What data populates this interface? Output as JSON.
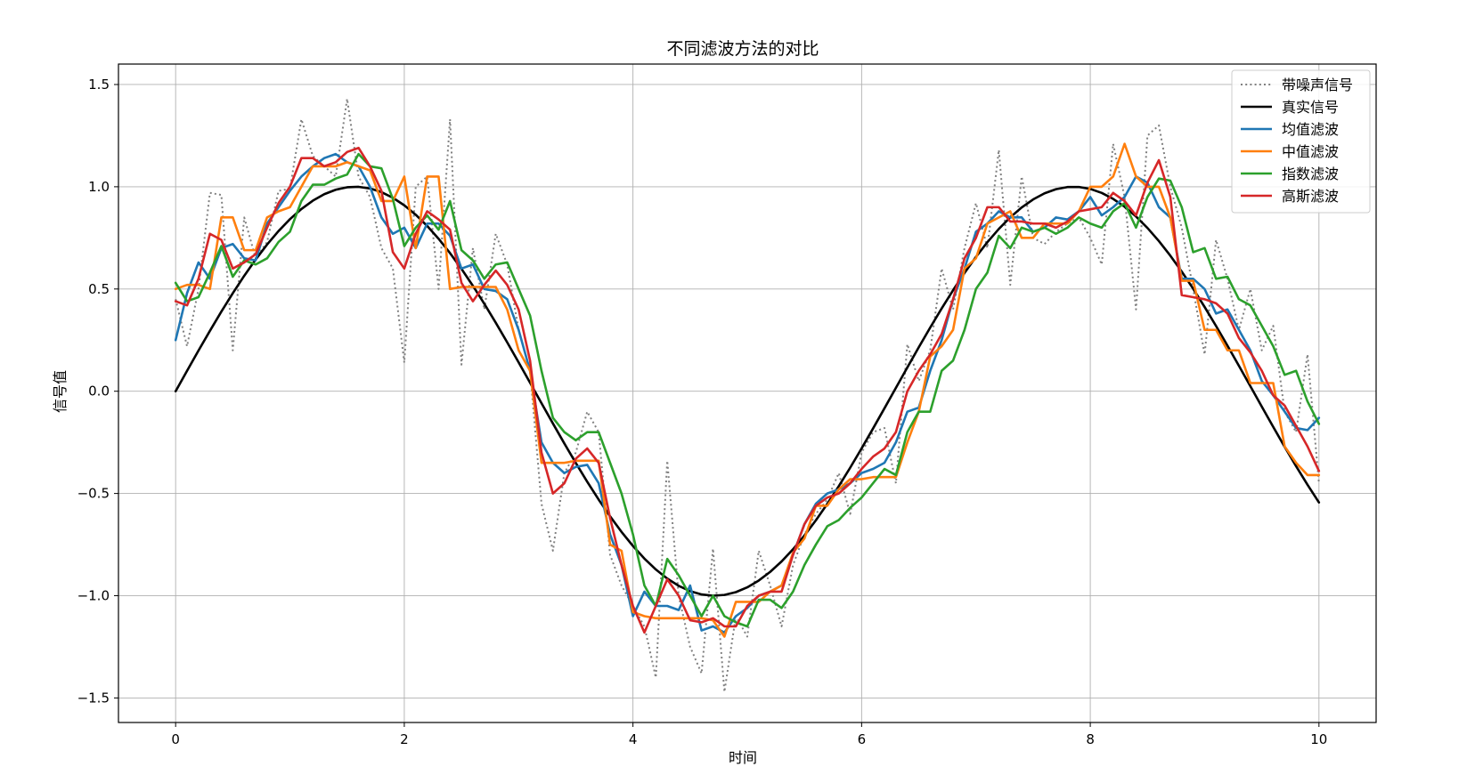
{
  "chart_data": {
    "type": "line",
    "title": "不同滤波方法的对比",
    "xlabel": "时间",
    "ylabel": "信号值",
    "xlim": [
      -0.5,
      10.5
    ],
    "ylim": [
      -1.62,
      1.6
    ],
    "xticks": [
      0,
      2,
      4,
      6,
      8,
      10
    ],
    "xtick_labels": [
      "0",
      "2",
      "4",
      "6",
      "8",
      "10"
    ],
    "yticks": [
      -1.5,
      -1.0,
      -0.5,
      0.0,
      0.5,
      1.0,
      1.5
    ],
    "ytick_labels": [
      "−1.5",
      "−1.0",
      "−0.5",
      "0.0",
      "0.5",
      "1.0",
      "1.5"
    ],
    "grid": true,
    "legend_position": "top-right",
    "x": [
      0.0,
      0.1,
      0.2,
      0.3,
      0.4,
      0.5,
      0.6,
      0.7,
      0.8,
      0.9,
      1.0,
      1.1,
      1.2,
      1.3,
      1.4,
      1.5,
      1.6,
      1.7,
      1.8,
      1.9,
      2.0,
      2.1,
      2.2,
      2.3,
      2.4,
      2.5,
      2.6,
      2.7,
      2.8,
      2.9,
      3.0,
      3.1,
      3.2,
      3.3,
      3.4,
      3.5,
      3.6,
      3.7,
      3.8,
      3.9,
      4.0,
      4.1,
      4.2,
      4.3,
      4.4,
      4.5,
      4.6,
      4.7,
      4.8,
      4.9,
      5.0,
      5.1,
      5.2,
      5.3,
      5.4,
      5.5,
      5.6,
      5.7,
      5.8,
      5.9,
      6.0,
      6.1,
      6.2,
      6.3,
      6.4,
      6.5,
      6.6,
      6.7,
      6.8,
      6.9,
      7.0,
      7.1,
      7.2,
      7.3,
      7.4,
      7.5,
      7.6,
      7.7,
      7.8,
      7.9,
      8.0,
      8.1,
      8.2,
      8.3,
      8.4,
      8.5,
      8.6,
      8.7,
      8.8,
      8.9,
      9.0,
      9.1,
      9.2,
      9.3,
      9.4,
      9.5,
      9.6,
      9.7,
      9.8,
      9.9,
      10.0
    ],
    "series": [
      {
        "name": "带噪声信号",
        "color": "#808080",
        "style": "dotted",
        "values": [
          0.45,
          0.22,
          0.5,
          0.97,
          0.96,
          0.2,
          0.85,
          0.65,
          0.73,
          0.98,
          0.99,
          1.33,
          1.15,
          1.1,
          1.05,
          1.43,
          1.05,
          0.95,
          0.7,
          0.6,
          0.14,
          1.0,
          1.05,
          0.5,
          1.33,
          0.13,
          0.7,
          0.4,
          0.77,
          0.62,
          0.3,
          0.1,
          -0.55,
          -0.78,
          -0.4,
          -0.3,
          -0.1,
          -0.2,
          -0.8,
          -0.95,
          -1.05,
          -1.15,
          -1.4,
          -0.34,
          -1.0,
          -1.25,
          -1.38,
          -0.77,
          -1.47,
          -1.1,
          -1.2,
          -0.78,
          -0.95,
          -1.15,
          -0.85,
          -0.7,
          -0.6,
          -0.53,
          -0.4,
          -0.6,
          -0.3,
          -0.2,
          -0.18,
          -0.45,
          0.23,
          0.05,
          0.2,
          0.6,
          0.4,
          0.7,
          0.92,
          0.7,
          1.18,
          0.52,
          1.05,
          0.75,
          0.72,
          0.78,
          0.82,
          0.85,
          0.75,
          0.62,
          1.21,
          0.95,
          0.4,
          1.25,
          1.3,
          1.0,
          0.8,
          0.5,
          0.18,
          0.74,
          0.55,
          0.3,
          0.5,
          0.2,
          0.32,
          -0.1,
          -0.2,
          0.18,
          -0.45
        ]
      },
      {
        "name": "真实信号",
        "color": "#000000",
        "style": "solid",
        "values": [
          0.0,
          0.0998,
          0.1987,
          0.2955,
          0.3894,
          0.4794,
          0.5646,
          0.6442,
          0.7174,
          0.7833,
          0.8415,
          0.8912,
          0.932,
          0.9636,
          0.9854,
          0.9975,
          0.9996,
          0.9917,
          0.9738,
          0.9463,
          0.9093,
          0.8632,
          0.8085,
          0.7457,
          0.6755,
          0.5985,
          0.5155,
          0.4274,
          0.335,
          0.2392,
          0.1411,
          0.0416,
          -0.0584,
          -0.1577,
          -0.2555,
          -0.3508,
          -0.4425,
          -0.5298,
          -0.6119,
          -0.6878,
          -0.7568,
          -0.8183,
          -0.8716,
          -0.9162,
          -0.9516,
          -0.9775,
          -0.9937,
          -0.9999,
          -0.9962,
          -0.9825,
          -0.9589,
          -0.9258,
          -0.8835,
          -0.8323,
          -0.7728,
          -0.7055,
          -0.6313,
          -0.5507,
          -0.4646,
          -0.3739,
          -0.2794,
          -0.1822,
          -0.0831,
          0.0168,
          0.1165,
          0.2151,
          0.3115,
          0.4048,
          0.4941,
          0.5784,
          0.657,
          0.729,
          0.7937,
          0.8504,
          0.8987,
          0.938,
          0.9679,
          0.9882,
          0.9985,
          0.9989,
          0.9894,
          0.9699,
          0.9407,
          0.9022,
          0.8546,
          0.7985,
          0.7344,
          0.663,
          0.5849,
          0.501,
          0.4121,
          0.319,
          0.2229,
          0.1245,
          0.0248,
          -0.0752,
          -0.1743,
          -0.2718,
          -0.3665,
          -0.4575,
          -0.544
        ]
      },
      {
        "name": "均值滤波",
        "color": "#1f77b4",
        "style": "solid",
        "values": [
          0.25,
          0.48,
          0.63,
          0.55,
          0.7,
          0.72,
          0.65,
          0.64,
          0.82,
          0.9,
          0.98,
          1.05,
          1.1,
          1.14,
          1.16,
          1.12,
          1.1,
          1.0,
          0.85,
          0.77,
          0.8,
          0.7,
          0.82,
          0.82,
          0.76,
          0.6,
          0.62,
          0.5,
          0.49,
          0.45,
          0.3,
          0.1,
          -0.25,
          -0.35,
          -0.4,
          -0.37,
          -0.36,
          -0.45,
          -0.7,
          -0.85,
          -1.1,
          -0.98,
          -1.05,
          -1.05,
          -1.07,
          -0.95,
          -1.17,
          -1.15,
          -1.18,
          -1.1,
          -1.06,
          -1.0,
          -0.98,
          -0.95,
          -0.8,
          -0.65,
          -0.55,
          -0.5,
          -0.48,
          -0.45,
          -0.4,
          -0.38,
          -0.35,
          -0.25,
          -0.1,
          -0.08,
          0.1,
          0.25,
          0.45,
          0.6,
          0.78,
          0.82,
          0.88,
          0.85,
          0.85,
          0.78,
          0.8,
          0.85,
          0.84,
          0.88,
          0.95,
          0.86,
          0.9,
          0.95,
          1.05,
          1.02,
          0.9,
          0.85,
          0.55,
          0.55,
          0.5,
          0.38,
          0.4,
          0.3,
          0.2,
          0.05,
          -0.02,
          -0.1,
          -0.18,
          -0.19,
          -0.13
        ]
      },
      {
        "name": "中值滤波",
        "color": "#ff7f0e",
        "style": "solid",
        "values": [
          0.5,
          0.52,
          0.52,
          0.5,
          0.85,
          0.85,
          0.69,
          0.69,
          0.85,
          0.88,
          0.9,
          1.0,
          1.1,
          1.1,
          1.1,
          1.12,
          1.1,
          1.08,
          0.93,
          0.93,
          1.05,
          0.7,
          1.05,
          1.05,
          0.5,
          0.51,
          0.51,
          0.51,
          0.51,
          0.4,
          0.2,
          0.1,
          -0.35,
          -0.35,
          -0.35,
          -0.34,
          -0.34,
          -0.34,
          -0.75,
          -0.78,
          -1.08,
          -1.1,
          -1.11,
          -1.11,
          -1.11,
          -1.11,
          -1.11,
          -1.12,
          -1.2,
          -1.03,
          -1.03,
          -1.03,
          -0.98,
          -0.95,
          -0.79,
          -0.72,
          -0.56,
          -0.56,
          -0.48,
          -0.43,
          -0.43,
          -0.42,
          -0.42,
          -0.42,
          -0.25,
          -0.1,
          0.17,
          0.22,
          0.3,
          0.6,
          0.65,
          0.82,
          0.85,
          0.88,
          0.75,
          0.75,
          0.82,
          0.82,
          0.82,
          0.88,
          1.0,
          1.0,
          1.05,
          1.21,
          1.05,
          1.0,
          1.0,
          0.85,
          0.54,
          0.54,
          0.3,
          0.3,
          0.2,
          0.2,
          0.04,
          0.04,
          0.04,
          -0.27,
          -0.35,
          -0.41,
          -0.41
        ]
      },
      {
        "name": "指数滤波",
        "color": "#2ca02c",
        "style": "solid",
        "values": [
          0.53,
          0.44,
          0.46,
          0.58,
          0.71,
          0.56,
          0.64,
          0.62,
          0.65,
          0.73,
          0.78,
          0.93,
          1.01,
          1.01,
          1.04,
          1.06,
          1.16,
          1.1,
          1.09,
          0.94,
          0.71,
          0.8,
          0.86,
          0.79,
          0.93,
          0.69,
          0.64,
          0.55,
          0.62,
          0.63,
          0.5,
          0.37,
          0.1,
          -0.13,
          -0.2,
          -0.24,
          -0.2,
          -0.2,
          -0.35,
          -0.5,
          -0.7,
          -0.95,
          -1.05,
          -0.82,
          -0.9,
          -1.0,
          -1.1,
          -1.0,
          -1.1,
          -1.13,
          -1.15,
          -1.02,
          -1.02,
          -1.06,
          -0.98,
          -0.85,
          -0.75,
          -0.66,
          -0.63,
          -0.57,
          -0.52,
          -0.45,
          -0.38,
          -0.41,
          -0.2,
          -0.1,
          -0.1,
          0.1,
          0.15,
          0.3,
          0.5,
          0.58,
          0.76,
          0.7,
          0.8,
          0.78,
          0.8,
          0.77,
          0.8,
          0.85,
          0.82,
          0.8,
          0.88,
          0.92,
          0.8,
          0.95,
          1.04,
          1.03,
          0.9,
          0.68,
          0.7,
          0.55,
          0.56,
          0.45,
          0.42,
          0.32,
          0.22,
          0.08,
          0.1,
          -0.05,
          -0.16
        ]
      },
      {
        "name": "高斯滤波",
        "color": "#d62728",
        "style": "solid",
        "values": [
          0.44,
          0.42,
          0.55,
          0.77,
          0.74,
          0.6,
          0.63,
          0.67,
          0.8,
          0.92,
          1.0,
          1.14,
          1.14,
          1.1,
          1.12,
          1.17,
          1.19,
          1.1,
          0.98,
          0.68,
          0.6,
          0.77,
          0.88,
          0.84,
          0.79,
          0.53,
          0.44,
          0.52,
          0.59,
          0.52,
          0.4,
          0.15,
          -0.3,
          -0.5,
          -0.45,
          -0.33,
          -0.28,
          -0.35,
          -0.62,
          -0.85,
          -1.05,
          -1.18,
          -1.05,
          -0.92,
          -1.0,
          -1.12,
          -1.13,
          -1.11,
          -1.15,
          -1.15,
          -1.05,
          -1.0,
          -0.98,
          -0.98,
          -0.8,
          -0.65,
          -0.56,
          -0.52,
          -0.5,
          -0.45,
          -0.38,
          -0.32,
          -0.28,
          -0.2,
          0.0,
          0.1,
          0.18,
          0.28,
          0.45,
          0.65,
          0.75,
          0.9,
          0.9,
          0.83,
          0.83,
          0.82,
          0.82,
          0.8,
          0.83,
          0.88,
          0.89,
          0.9,
          0.97,
          0.93,
          0.86,
          1.02,
          1.13,
          0.95,
          0.47,
          0.46,
          0.45,
          0.43,
          0.38,
          0.26,
          0.19,
          0.1,
          -0.02,
          -0.07,
          -0.17,
          -0.27,
          -0.39
        ]
      }
    ]
  }
}
